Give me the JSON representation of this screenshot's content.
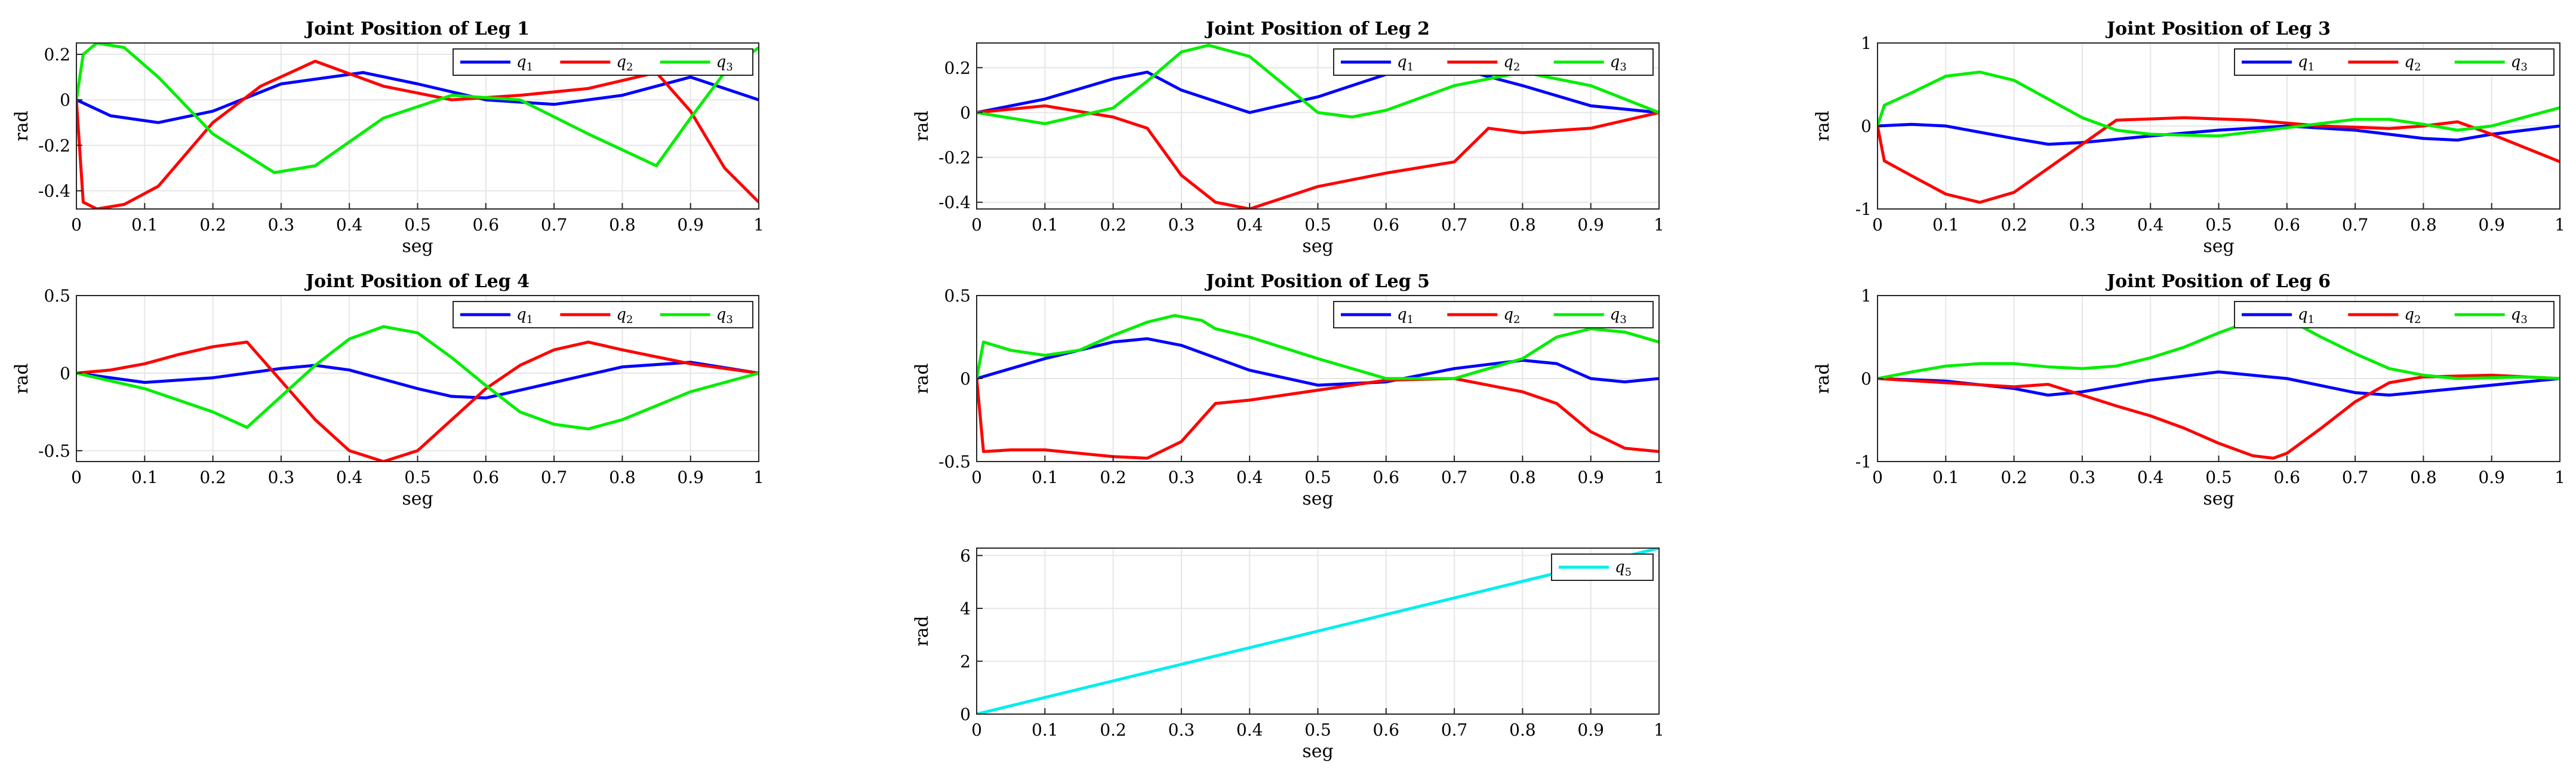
{
  "chart_data": [
    {
      "type": "line",
      "title": "Joint Position of Leg 1",
      "xlabel": "seg",
      "ylabel": "rad",
      "xlim": [
        0,
        1
      ],
      "ylim": [
        -0.48,
        0.25
      ],
      "xticks": [
        0,
        0.1,
        0.2,
        0.3,
        0.4,
        0.5,
        0.6,
        0.7,
        0.8,
        0.9,
        1
      ],
      "xtick_labels": [
        "0",
        "0.1",
        "0.2",
        "0.3",
        "0.4",
        "0.5",
        "0.6",
        "0.7",
        "0.8",
        "0.9",
        "1"
      ],
      "yticks": [
        -0.4,
        -0.2,
        0,
        0.2
      ],
      "ytick_labels": [
        "-0.4",
        "-0.2",
        "0",
        "0.2"
      ],
      "grid": true,
      "legend": "top-right",
      "series": [
        {
          "name": "q1",
          "sub": "1",
          "color": "#0000ff",
          "x": [
            0,
            0.05,
            0.12,
            0.2,
            0.3,
            0.42,
            0.5,
            0.6,
            0.7,
            0.8,
            0.9,
            1.0
          ],
          "y": [
            0,
            -0.07,
            -0.1,
            -0.05,
            0.07,
            0.12,
            0.07,
            0,
            -0.02,
            0.02,
            0.1,
            0
          ]
        },
        {
          "name": "q2",
          "sub": "2",
          "color": "#ff0000",
          "x": [
            0,
            0.01,
            0.03,
            0.07,
            0.12,
            0.2,
            0.27,
            0.35,
            0.45,
            0.55,
            0.65,
            0.75,
            0.85,
            0.9,
            0.95,
            1.0
          ],
          "y": [
            0,
            -0.45,
            -0.48,
            -0.46,
            -0.38,
            -0.1,
            0.06,
            0.17,
            0.06,
            0.0,
            0.02,
            0.05,
            0.12,
            -0.05,
            -0.3,
            -0.45
          ]
        },
        {
          "name": "q3",
          "sub": "3",
          "color": "#00ee00",
          "x": [
            0,
            0.01,
            0.03,
            0.07,
            0.12,
            0.2,
            0.29,
            0.35,
            0.45,
            0.55,
            0.65,
            0.75,
            0.85,
            0.9,
            0.95,
            1.0
          ],
          "y": [
            0,
            0.2,
            0.25,
            0.23,
            0.1,
            -0.15,
            -0.32,
            -0.29,
            -0.08,
            0.02,
            0.0,
            -0.15,
            -0.29,
            -0.08,
            0.12,
            0.23
          ]
        }
      ]
    },
    {
      "type": "line",
      "title": "Joint Position of Leg 2",
      "xlabel": "seg",
      "ylabel": "rad",
      "xlim": [
        0,
        1
      ],
      "ylim": [
        -0.43,
        0.31
      ],
      "xticks": [
        0,
        0.1,
        0.2,
        0.3,
        0.4,
        0.5,
        0.6,
        0.7,
        0.8,
        0.9,
        1
      ],
      "xtick_labels": [
        "0",
        "0.1",
        "0.2",
        "0.3",
        "0.4",
        "0.5",
        "0.6",
        "0.7",
        "0.8",
        "0.9",
        "1"
      ],
      "yticks": [
        -0.4,
        -0.2,
        0,
        0.2
      ],
      "ytick_labels": [
        "-0.4",
        "-0.2",
        "0",
        "0.2"
      ],
      "grid": true,
      "legend": "top-right",
      "series": [
        {
          "name": "q1",
          "sub": "1",
          "color": "#0000ff",
          "x": [
            0,
            0.1,
            0.2,
            0.25,
            0.3,
            0.4,
            0.5,
            0.6,
            0.7,
            0.8,
            0.9,
            1.0
          ],
          "y": [
            0,
            0.06,
            0.15,
            0.18,
            0.1,
            0.0,
            0.07,
            0.17,
            0.2,
            0.12,
            0.03,
            0
          ]
        },
        {
          "name": "q2",
          "sub": "2",
          "color": "#ff0000",
          "x": [
            0,
            0.1,
            0.2,
            0.25,
            0.3,
            0.35,
            0.4,
            0.5,
            0.6,
            0.7,
            0.75,
            0.8,
            0.9,
            1.0
          ],
          "y": [
            0,
            0.03,
            -0.02,
            -0.07,
            -0.28,
            -0.4,
            -0.43,
            -0.33,
            -0.27,
            -0.22,
            -0.07,
            -0.09,
            -0.07,
            0
          ]
        },
        {
          "name": "q3",
          "sub": "3",
          "color": "#00ee00",
          "x": [
            0,
            0.1,
            0.2,
            0.25,
            0.3,
            0.34,
            0.4,
            0.5,
            0.55,
            0.6,
            0.7,
            0.8,
            0.9,
            1.0
          ],
          "y": [
            0,
            -0.05,
            0.02,
            0.14,
            0.27,
            0.3,
            0.25,
            0.0,
            -0.02,
            0.01,
            0.12,
            0.18,
            0.12,
            0
          ]
        }
      ]
    },
    {
      "type": "line",
      "title": "Joint Position of Leg 3",
      "xlabel": "seg",
      "ylabel": "rad",
      "xlim": [
        0,
        1
      ],
      "ylim": [
        -1,
        1
      ],
      "xticks": [
        0,
        0.1,
        0.2,
        0.3,
        0.4,
        0.5,
        0.6,
        0.7,
        0.8,
        0.9,
        1
      ],
      "xtick_labels": [
        "0",
        "0.1",
        "0.2",
        "0.3",
        "0.4",
        "0.5",
        "0.6",
        "0.7",
        "0.8",
        "0.9",
        "1"
      ],
      "yticks": [
        -1,
        0,
        1
      ],
      "ytick_labels": [
        "-1",
        "0",
        "1"
      ],
      "grid": true,
      "legend": "top-right",
      "series": [
        {
          "name": "q1",
          "sub": "1",
          "color": "#0000ff",
          "x": [
            0,
            0.05,
            0.1,
            0.2,
            0.25,
            0.3,
            0.4,
            0.5,
            0.6,
            0.7,
            0.8,
            0.85,
            0.9,
            1.0
          ],
          "y": [
            0,
            0.02,
            0.0,
            -0.15,
            -0.22,
            -0.2,
            -0.12,
            -0.05,
            0.0,
            -0.05,
            -0.15,
            -0.17,
            -0.1,
            0
          ]
        },
        {
          "name": "q2",
          "sub": "2",
          "color": "#ff0000",
          "x": [
            0,
            0.01,
            0.05,
            0.1,
            0.15,
            0.2,
            0.3,
            0.35,
            0.45,
            0.55,
            0.65,
            0.75,
            0.8,
            0.85,
            0.9,
            1.0
          ],
          "y": [
            0,
            -0.42,
            -0.6,
            -0.82,
            -0.92,
            -0.8,
            -0.22,
            0.07,
            0.1,
            0.07,
            0.0,
            -0.03,
            0.0,
            0.05,
            -0.1,
            -0.43
          ]
        },
        {
          "name": "q3",
          "sub": "3",
          "color": "#00ee00",
          "x": [
            0,
            0.01,
            0.05,
            0.1,
            0.15,
            0.2,
            0.3,
            0.35,
            0.4,
            0.5,
            0.6,
            0.7,
            0.75,
            0.8,
            0.85,
            0.9,
            1.0
          ],
          "y": [
            0,
            0.25,
            0.4,
            0.6,
            0.65,
            0.55,
            0.1,
            -0.05,
            -0.1,
            -0.12,
            -0.02,
            0.08,
            0.08,
            0.02,
            -0.05,
            0.0,
            0.22
          ]
        }
      ]
    },
    {
      "type": "line",
      "title": "Joint Position of Leg 4",
      "xlabel": "seg",
      "ylabel": "rad",
      "xlim": [
        0,
        1
      ],
      "ylim": [
        -0.57,
        0.5
      ],
      "xticks": [
        0,
        0.1,
        0.2,
        0.3,
        0.4,
        0.5,
        0.6,
        0.7,
        0.8,
        0.9,
        1
      ],
      "xtick_labels": [
        "0",
        "0.1",
        "0.2",
        "0.3",
        "0.4",
        "0.5",
        "0.6",
        "0.7",
        "0.8",
        "0.9",
        "1"
      ],
      "yticks": [
        -0.5,
        0,
        0.5
      ],
      "ytick_labels": [
        "-0.5",
        "0",
        "0.5"
      ],
      "grid": true,
      "legend": "top-right",
      "series": [
        {
          "name": "q1",
          "sub": "1",
          "color": "#0000ff",
          "x": [
            0,
            0.1,
            0.2,
            0.3,
            0.35,
            0.4,
            0.5,
            0.55,
            0.6,
            0.7,
            0.8,
            0.9,
            1.0
          ],
          "y": [
            0,
            -0.06,
            -0.03,
            0.03,
            0.05,
            0.02,
            -0.1,
            -0.15,
            -0.16,
            -0.06,
            0.04,
            0.07,
            0
          ]
        },
        {
          "name": "q2",
          "sub": "2",
          "color": "#ff0000",
          "x": [
            0,
            0.05,
            0.1,
            0.15,
            0.2,
            0.25,
            0.3,
            0.35,
            0.4,
            0.45,
            0.5,
            0.55,
            0.6,
            0.65,
            0.7,
            0.75,
            0.8,
            0.9,
            1.0
          ],
          "y": [
            0,
            0.02,
            0.06,
            0.12,
            0.17,
            0.2,
            -0.05,
            -0.3,
            -0.5,
            -0.57,
            -0.5,
            -0.3,
            -0.1,
            0.05,
            0.15,
            0.2,
            0.15,
            0.06,
            0
          ]
        },
        {
          "name": "q3",
          "sub": "3",
          "color": "#00ee00",
          "x": [
            0,
            0.1,
            0.2,
            0.25,
            0.3,
            0.35,
            0.4,
            0.45,
            0.5,
            0.55,
            0.6,
            0.65,
            0.7,
            0.75,
            0.8,
            0.9,
            1.0
          ],
          "y": [
            0,
            -0.1,
            -0.25,
            -0.35,
            -0.15,
            0.05,
            0.22,
            0.3,
            0.26,
            0.1,
            -0.08,
            -0.25,
            -0.33,
            -0.36,
            -0.3,
            -0.12,
            0
          ]
        }
      ]
    },
    {
      "type": "line",
      "title": "Joint Position of Leg 5",
      "xlabel": "seg",
      "ylabel": "rad",
      "xlim": [
        0,
        1
      ],
      "ylim": [
        -0.5,
        0.5
      ],
      "xticks": [
        0,
        0.1,
        0.2,
        0.3,
        0.4,
        0.5,
        0.6,
        0.7,
        0.8,
        0.9,
        1
      ],
      "xtick_labels": [
        "0",
        "0.1",
        "0.2",
        "0.3",
        "0.4",
        "0.5",
        "0.6",
        "0.7",
        "0.8",
        "0.9",
        "1"
      ],
      "yticks": [
        -0.5,
        0,
        0.5
      ],
      "ytick_labels": [
        "-0.5",
        "0",
        "0.5"
      ],
      "grid": true,
      "legend": "top-right",
      "series": [
        {
          "name": "q1",
          "sub": "1",
          "color": "#0000ff",
          "x": [
            0,
            0.1,
            0.2,
            0.25,
            0.3,
            0.4,
            0.5,
            0.6,
            0.7,
            0.8,
            0.85,
            0.9,
            0.95,
            1.0
          ],
          "y": [
            0,
            0.12,
            0.22,
            0.24,
            0.2,
            0.05,
            -0.04,
            -0.02,
            0.06,
            0.11,
            0.09,
            0.0,
            -0.02,
            0
          ]
        },
        {
          "name": "q2",
          "sub": "2",
          "color": "#ff0000",
          "x": [
            0,
            0.01,
            0.05,
            0.1,
            0.2,
            0.25,
            0.3,
            0.35,
            0.4,
            0.5,
            0.6,
            0.7,
            0.8,
            0.85,
            0.9,
            0.95,
            1.0
          ],
          "y": [
            0,
            -0.44,
            -0.43,
            -0.43,
            -0.47,
            -0.48,
            -0.38,
            -0.15,
            -0.13,
            -0.07,
            -0.01,
            0.0,
            -0.08,
            -0.15,
            -0.32,
            -0.42,
            -0.44
          ]
        },
        {
          "name": "q3",
          "sub": "3",
          "color": "#00ee00",
          "x": [
            0,
            0.01,
            0.05,
            0.1,
            0.15,
            0.2,
            0.25,
            0.29,
            0.33,
            0.35,
            0.4,
            0.5,
            0.6,
            0.7,
            0.8,
            0.85,
            0.9,
            0.95,
            1.0
          ],
          "y": [
            0,
            0.22,
            0.17,
            0.14,
            0.17,
            0.26,
            0.34,
            0.38,
            0.35,
            0.3,
            0.25,
            0.12,
            0.0,
            0.0,
            0.12,
            0.25,
            0.3,
            0.28,
            0.22
          ]
        }
      ]
    },
    {
      "type": "line",
      "title": "Joint Position of Leg 6",
      "xlabel": "seg",
      "ylabel": "rad",
      "xlim": [
        0,
        1
      ],
      "ylim": [
        -1,
        1
      ],
      "xticks": [
        0,
        0.1,
        0.2,
        0.3,
        0.4,
        0.5,
        0.6,
        0.7,
        0.8,
        0.9,
        1
      ],
      "xtick_labels": [
        "0",
        "0.1",
        "0.2",
        "0.3",
        "0.4",
        "0.5",
        "0.6",
        "0.7",
        "0.8",
        "0.9",
        "1"
      ],
      "yticks": [
        -1,
        0,
        1
      ],
      "ytick_labels": [
        "-1",
        "0",
        "1"
      ],
      "grid": true,
      "legend": "top-right",
      "series": [
        {
          "name": "q1",
          "sub": "1",
          "color": "#0000ff",
          "x": [
            0,
            0.1,
            0.2,
            0.25,
            0.3,
            0.4,
            0.5,
            0.6,
            0.7,
            0.75,
            0.8,
            0.9,
            1.0
          ],
          "y": [
            0,
            -0.03,
            -0.12,
            -0.2,
            -0.16,
            -0.02,
            0.08,
            0.0,
            -0.17,
            -0.2,
            -0.16,
            -0.08,
            0
          ]
        },
        {
          "name": "q2",
          "sub": "2",
          "color": "#ff0000",
          "x": [
            0,
            0.1,
            0.2,
            0.25,
            0.3,
            0.35,
            0.4,
            0.45,
            0.5,
            0.55,
            0.58,
            0.6,
            0.65,
            0.7,
            0.75,
            0.8,
            0.9,
            1.0
          ],
          "y": [
            0,
            -0.05,
            -0.1,
            -0.07,
            -0.2,
            -0.33,
            -0.45,
            -0.6,
            -0.78,
            -0.93,
            -0.96,
            -0.9,
            -0.6,
            -0.28,
            -0.05,
            0.02,
            0.04,
            0
          ]
        },
        {
          "name": "q3",
          "sub": "3",
          "color": "#00ee00",
          "x": [
            0,
            0.05,
            0.1,
            0.15,
            0.2,
            0.25,
            0.3,
            0.35,
            0.4,
            0.45,
            0.5,
            0.55,
            0.6,
            0.65,
            0.7,
            0.75,
            0.8,
            0.85,
            0.9,
            0.95,
            1.0
          ],
          "y": [
            0,
            0.08,
            0.15,
            0.18,
            0.18,
            0.14,
            0.12,
            0.15,
            0.25,
            0.38,
            0.55,
            0.7,
            0.72,
            0.5,
            0.3,
            0.12,
            0.04,
            0.0,
            0.01,
            0.02,
            0
          ]
        }
      ]
    },
    {
      "type": "line",
      "title": "",
      "xlabel": "seg",
      "ylabel": "rad",
      "xlim": [
        0,
        1
      ],
      "ylim": [
        0,
        6.28
      ],
      "xticks": [
        0,
        0.1,
        0.2,
        0.3,
        0.4,
        0.5,
        0.6,
        0.7,
        0.8,
        0.9,
        1
      ],
      "xtick_labels": [
        "0",
        "0.1",
        "0.2",
        "0.3",
        "0.4",
        "0.5",
        "0.6",
        "0.7",
        "0.8",
        "0.9",
        "1"
      ],
      "yticks": [
        0,
        2,
        4,
        6
      ],
      "ytick_labels": [
        "0",
        "2",
        "4",
        "6"
      ],
      "grid": true,
      "legend": "top-right",
      "series": [
        {
          "name": "q5",
          "sub": "5",
          "color": "#00eeee",
          "x": [
            0,
            1
          ],
          "y": [
            0,
            6.28
          ]
        }
      ]
    }
  ]
}
